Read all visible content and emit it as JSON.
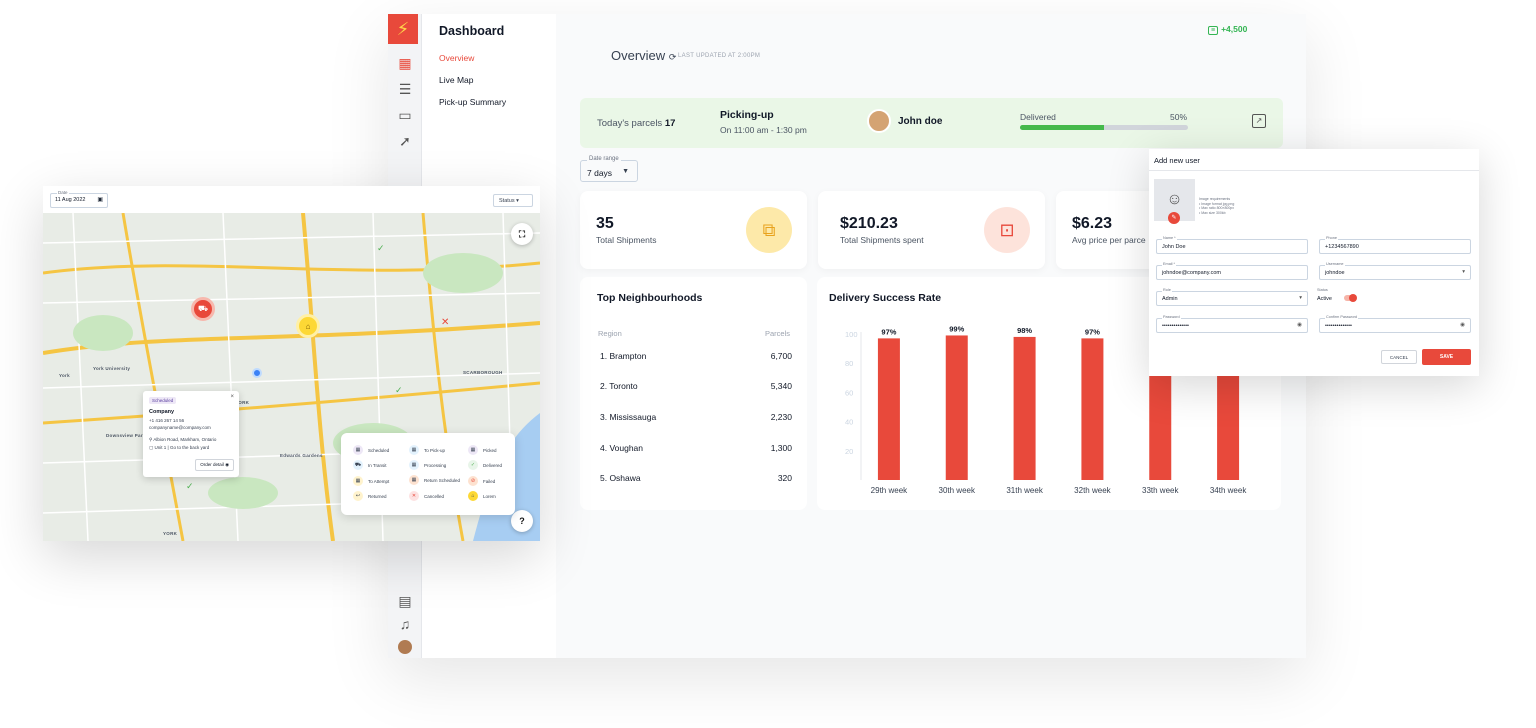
{
  "app": {
    "sidebar_title": "Dashboard",
    "nav": [
      "Overview",
      "Live Map",
      "Pick-up Summary"
    ],
    "icons": [
      "bolt-logo",
      "grid-icon",
      "list-icon",
      "card-icon",
      "rocket-icon",
      "chat-icon",
      "bell-icon",
      "avatar-icon"
    ]
  },
  "header": {
    "title": "Overview",
    "updated": "LAST UPDATED AT 2:00PM",
    "coins": "+4,500"
  },
  "banner": {
    "parcels_label": "Today's parcels",
    "parcels_value": "17",
    "picking_title": "Picking-up",
    "picking_time": "On 11:00 am - 1:30 pm",
    "driver": "John doe",
    "delivered_label": "Delivered",
    "delivered_pct": "50%",
    "delivered_fraction": 0.5
  },
  "range": {
    "label": "Date range",
    "value": "7 days"
  },
  "stats": [
    {
      "value": "35",
      "label": "Total Shipments"
    },
    {
      "value": "$210.23",
      "label": "Total Shipments spent"
    },
    {
      "value": "$6.23",
      "label": "Avg price per parce"
    }
  ],
  "neighbourhoods": {
    "title": "Top Neighbourhoods",
    "col_region": "Region",
    "col_parcels": "Parcels",
    "rows": [
      {
        "region": "1. Brampton",
        "parcels": "6,700"
      },
      {
        "region": "2. Toronto",
        "parcels": "5,340"
      },
      {
        "region": "3. Mississauga",
        "parcels": "2,230"
      },
      {
        "region": "4. Voughan",
        "parcels": "1,300"
      },
      {
        "region": "5. Oshawa",
        "parcels": "320"
      }
    ]
  },
  "chart_data": {
    "type": "bar",
    "title": "Delivery Success Rate",
    "categories": [
      "29th week",
      "30th week",
      "31th week",
      "32th week",
      "33th week",
      "34th week"
    ],
    "values": [
      97,
      99,
      98,
      97,
      97,
      97
    ],
    "data_labels": [
      "97%",
      "99%",
      "98%",
      "97%",
      "",
      ""
    ],
    "y_ticks": [
      20,
      40,
      60,
      80,
      100
    ],
    "ylim": [
      0,
      100
    ],
    "bar_color": "#e8493b"
  },
  "map": {
    "date_label": "Date",
    "date_value": "11 Aug 2022",
    "status_label": "Status",
    "labels": [
      "York University",
      "York",
      "Downsview Park",
      "Edwards Gardens",
      "SCARBOROUGH",
      "YORK",
      "YORK"
    ],
    "popup": {
      "tag": "Scheduled",
      "company": "Company",
      "phone": "+1 416 267 14 56",
      "email": "companyname@company.com",
      "address": "Albion Road, Markham, Ontario",
      "unit": "Unit 1 | Go to the back yard",
      "button": "Order detail"
    },
    "legend": [
      {
        "label": "Scheduled",
        "color": "#ede7f6"
      },
      {
        "label": "To Pick-up",
        "color": "#e3f2fd"
      },
      {
        "label": "Picked",
        "color": "#ede7f6"
      },
      {
        "label": "In Transit",
        "color": "#e3f2fd"
      },
      {
        "label": "Processing",
        "color": "#e3f2fd"
      },
      {
        "label": "Delivered",
        "color": "#e8f5e9"
      },
      {
        "label": "To Attempt",
        "color": "#fff3cd"
      },
      {
        "label": "Return Scheduled",
        "color": "#fde2d0"
      },
      {
        "label": "Failed",
        "color": "#fde2d0"
      },
      {
        "label": "Returned",
        "color": "#fff3cd"
      },
      {
        "label": "Cancelled",
        "color": "#fde2e2"
      },
      {
        "label": "Lorem",
        "color": "#fdd835"
      }
    ]
  },
  "adduser": {
    "title": "Add new user",
    "requirements": [
      "Image requirements",
      "• Image format jpg,png",
      "• Max ratio 800×800px",
      "• Max size 300kb"
    ],
    "fields": [
      {
        "label": "Name *",
        "value": "John Doe"
      },
      {
        "label": "Phone",
        "value": "+1234567890"
      },
      {
        "label": "Email *",
        "value": "johndoe@company.com"
      },
      {
        "label": "Username",
        "value": "johndoe"
      },
      {
        "label": "Role",
        "value": "Admin"
      },
      {
        "label": "Status",
        "value": "Active"
      },
      {
        "label": "Password",
        "value": "••••••••••••••"
      },
      {
        "label": "Confirm Password",
        "value": "••••••••••••••"
      }
    ],
    "cancel": "CANCEL",
    "save": "SAVE"
  }
}
